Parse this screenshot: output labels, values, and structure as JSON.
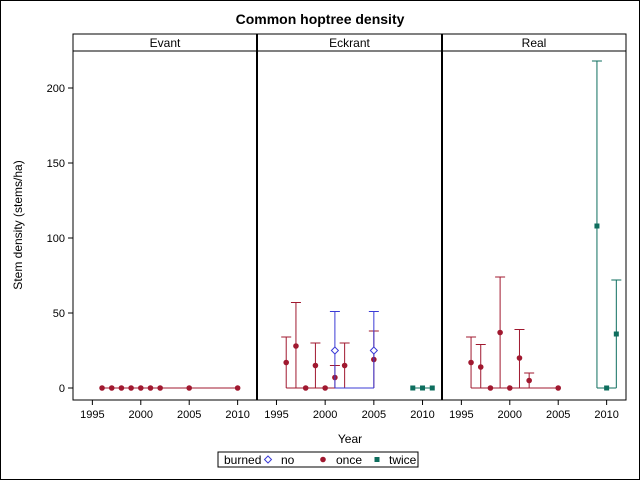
{
  "chart_data": {
    "type": "scatter",
    "title": "Common hoptree density",
    "xlabel": "Year",
    "ylabel": "Stem density (stems/ha)",
    "ylim": [
      -10,
      225
    ],
    "xlim": [
      1993,
      2012
    ],
    "x_ticks": [
      1995,
      2000,
      2005,
      2010
    ],
    "y_ticks": [
      0,
      50,
      100,
      150,
      200
    ],
    "panels": [
      "Evant",
      "Eckrant",
      "Real"
    ],
    "legend": {
      "title": "burned",
      "placement": "bottom",
      "entries": [
        "no",
        "once",
        "twice"
      ]
    },
    "colors": {
      "no": "#3b3bd6",
      "once": "#a0182f",
      "twice": "#0e6e5e"
    },
    "series": [
      {
        "panel": "Evant",
        "name": "once",
        "points": [
          {
            "x": 1996,
            "y": 0
          },
          {
            "x": 1997,
            "y": 0
          },
          {
            "x": 1998,
            "y": 0
          },
          {
            "x": 1999,
            "y": 0
          },
          {
            "x": 2000,
            "y": 0
          },
          {
            "x": 2001,
            "y": 0
          },
          {
            "x": 2002,
            "y": 0
          },
          {
            "x": 2005,
            "y": 0
          },
          {
            "x": 2010,
            "y": 0
          }
        ]
      },
      {
        "panel": "Eckrant",
        "name": "once",
        "points": [
          {
            "x": 1996,
            "y": 17,
            "lo": 0,
            "hi": 34
          },
          {
            "x": 1997,
            "y": 28,
            "lo": 0,
            "hi": 57
          },
          {
            "x": 1998,
            "y": 0
          },
          {
            "x": 1999,
            "y": 15,
            "lo": 0,
            "hi": 30
          },
          {
            "x": 2000,
            "y": 0
          },
          {
            "x": 2001,
            "y": 7,
            "lo": 0,
            "hi": 15
          },
          {
            "x": 2002,
            "y": 15,
            "lo": 0,
            "hi": 30
          },
          {
            "x": 2005,
            "y": 19,
            "lo": 0,
            "hi": 38
          }
        ]
      },
      {
        "panel": "Eckrant",
        "name": "no",
        "points": [
          {
            "x": 2001,
            "y": 25,
            "lo": 0,
            "hi": 51
          },
          {
            "x": 2005,
            "y": 25,
            "lo": 0,
            "hi": 51
          }
        ]
      },
      {
        "panel": "Eckrant",
        "name": "twice",
        "points": [
          {
            "x": 2009,
            "y": 0
          },
          {
            "x": 2010,
            "y": 0
          },
          {
            "x": 2011,
            "y": 0
          }
        ]
      },
      {
        "panel": "Real",
        "name": "once",
        "points": [
          {
            "x": 1996,
            "y": 17,
            "lo": 0,
            "hi": 34
          },
          {
            "x": 1997,
            "y": 14,
            "lo": 0,
            "hi": 29
          },
          {
            "x": 1998,
            "y": 0
          },
          {
            "x": 1999,
            "y": 37,
            "lo": 0,
            "hi": 74
          },
          {
            "x": 2000,
            "y": 0
          },
          {
            "x": 2001,
            "y": 20,
            "lo": 0,
            "hi": 39
          },
          {
            "x": 2002,
            "y": 5,
            "lo": 0,
            "hi": 10
          },
          {
            "x": 2005,
            "y": 0
          }
        ]
      },
      {
        "panel": "Real",
        "name": "twice",
        "points": [
          {
            "x": 2009,
            "y": 108,
            "lo": 0,
            "hi": 218
          },
          {
            "x": 2010,
            "y": 0
          },
          {
            "x": 2011,
            "y": 36,
            "lo": 0,
            "hi": 72
          }
        ]
      }
    ]
  }
}
